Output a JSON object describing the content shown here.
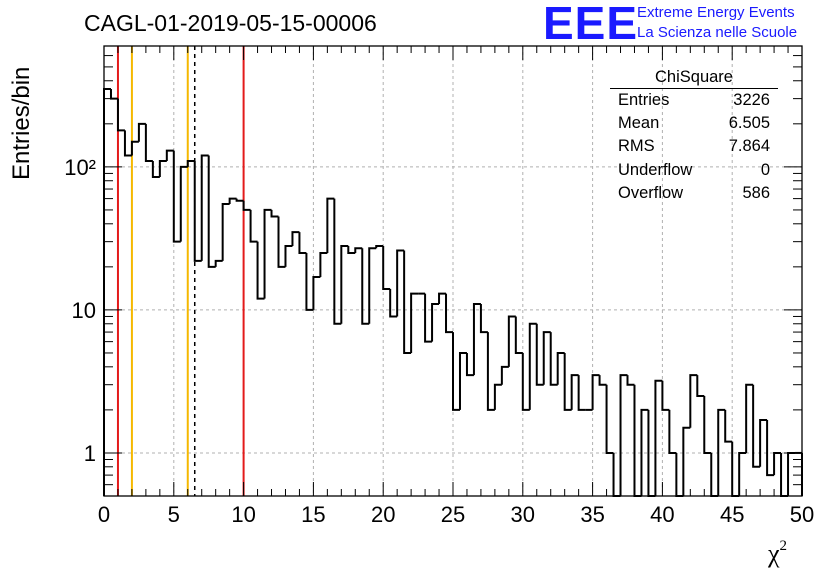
{
  "header": {
    "title": "CAGL-01-2019-05-15-00006",
    "logo_text": "EEE",
    "logo_line1": "Extreme Energy Events",
    "logo_line2": "La Scienza nelle Scuole"
  },
  "stats": {
    "title": "ChiSquare",
    "rows": [
      {
        "label": "Entries",
        "value": "3226"
      },
      {
        "label": "Mean",
        "value": "6.505"
      },
      {
        "label": "RMS",
        "value": "7.864"
      },
      {
        "label": "Underflow",
        "value": "0"
      },
      {
        "label": "Overflow",
        "value": "586"
      }
    ]
  },
  "colors": {
    "red_line": "#e31a1a",
    "yellow_line": "#f5b800",
    "histogram": "#000000",
    "grid": "#b0b0b0",
    "logo": "#1a1aff"
  },
  "chart_data": {
    "type": "bar",
    "histogram_style": "step",
    "ylabel": "Entries/bin",
    "xlabel_base": "χ",
    "xlabel_sup": "2",
    "xlim": [
      0,
      50
    ],
    "ylim": [
      0.5,
      700
    ],
    "y_scale": "log",
    "grid": true,
    "x_ticks": [
      0,
      5,
      10,
      15,
      20,
      25,
      30,
      35,
      40,
      45,
      50
    ],
    "x_tick_labels": [
      "0",
      "5",
      "10",
      "15",
      "20",
      "25",
      "30",
      "35",
      "40",
      "45",
      "50"
    ],
    "y_tick_values": [
      1,
      10,
      100
    ],
    "y_tick_labels": [
      "1",
      "10",
      "10²"
    ],
    "bin_width": 0.5,
    "values": [
      350,
      300,
      180,
      120,
      150,
      200,
      110,
      85,
      110,
      130,
      30,
      100,
      110,
      22,
      120,
      20,
      22,
      55,
      60,
      58,
      50,
      30,
      12,
      50,
      45,
      20,
      28,
      35,
      25,
      10,
      17,
      25,
      60,
      8,
      28,
      25,
      27,
      8,
      27,
      28,
      14,
      9,
      26,
      5,
      13,
      13,
      6,
      11,
      13,
      7,
      2,
      5,
      3.5,
      11,
      7,
      2,
      3,
      4,
      9,
      5,
      2,
      8,
      3,
      7,
      3,
      5,
      2,
      3.5,
      2,
      2,
      3.5,
      3,
      1,
      0,
      3.5,
      3,
      0,
      2,
      0,
      3.2,
      2,
      1,
      0,
      1.5,
      3.5,
      2.5,
      1,
      0,
      2,
      1.2,
      0,
      1,
      3,
      0.8,
      1.7,
      0.7,
      1,
      0,
      1,
      1
    ],
    "vertical_markers": [
      {
        "x": 1,
        "color": "red",
        "style": "solid"
      },
      {
        "x": 2,
        "color": "yellow",
        "style": "solid"
      },
      {
        "x": 6,
        "color": "yellow",
        "style": "solid"
      },
      {
        "x": 6.5,
        "color": "black",
        "style": "dashed"
      },
      {
        "x": 10,
        "color": "red",
        "style": "solid"
      }
    ]
  }
}
